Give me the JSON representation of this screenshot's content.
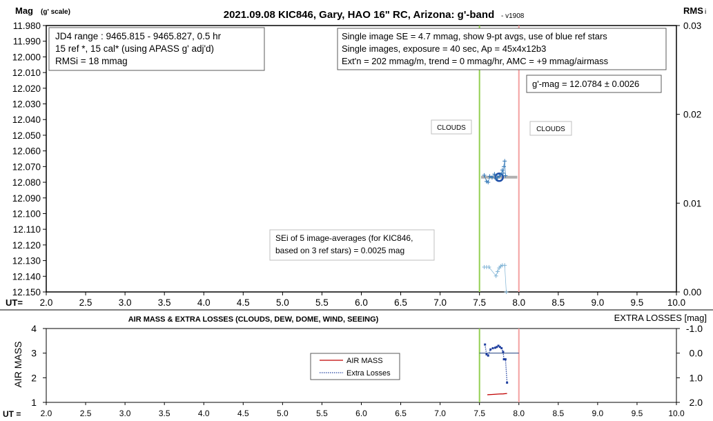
{
  "chart_data": [
    {
      "type": "scatter",
      "title": "2021.09.08 KIC846, Gary, HAO 16\" RC, Arizona: g'-band",
      "version": "- v1908",
      "ylabel": "Mag",
      "ylabel_suffix": "(g' scale)",
      "y2label": "RMS",
      "y2label_suffix": "i",
      "xaxis_prefix": "UT=",
      "xlim": [
        2.0,
        10.0
      ],
      "ylim": [
        11.98,
        12.15
      ],
      "y_inverted": true,
      "y2lim": [
        0.0,
        0.03
      ],
      "x_ticks": [
        "2.0",
        "2.5",
        "3.0",
        "3.5",
        "4.0",
        "4.5",
        "5.0",
        "5.5",
        "6.0",
        "6.5",
        "7.0",
        "7.5",
        "8.0",
        "8.5",
        "9.0",
        "9.5",
        "10.0"
      ],
      "y_ticks": [
        "11.980",
        "11.990",
        "12.000",
        "12.010",
        "12.020",
        "12.030",
        "12.040",
        "12.050",
        "12.060",
        "12.070",
        "12.080",
        "12.090",
        "12.100",
        "12.110",
        "12.120",
        "12.130",
        "12.140",
        "12.150"
      ],
      "y2_ticks": [
        "0.03",
        "0.02",
        "0.01",
        "0.00"
      ],
      "vlines": [
        {
          "x": 7.5,
          "color": "#92d050"
        },
        {
          "x": 8.0,
          "color": "#f4a0a0"
        }
      ],
      "series": [
        {
          "role": "mag",
          "color": "#2e75b6",
          "points": [
            [
              7.56,
              12.0755
            ],
            [
              7.59,
              12.0795
            ],
            [
              7.61,
              12.08
            ],
            [
              7.63,
              12.0762
            ],
            [
              7.66,
              12.077
            ],
            [
              7.69,
              12.0748
            ],
            [
              7.71,
              12.0778
            ],
            [
              7.73,
              12.0768
            ],
            [
              7.75,
              12.0762
            ],
            [
              7.77,
              12.0752
            ],
            [
              7.79,
              12.0722
            ],
            [
              7.8,
              12.0742
            ],
            [
              7.81,
              12.07
            ],
            [
              7.82,
              12.0665
            ],
            [
              7.83,
              12.0758
            ]
          ]
        },
        {
          "role": "rms",
          "color": "#7fb3d5",
          "points": [
            [
              7.56,
              0.0028
            ],
            [
              7.59,
              0.0028
            ],
            [
              7.62,
              0.0028
            ],
            [
              7.71,
              0.0018
            ],
            [
              7.73,
              0.0023
            ],
            [
              7.75,
              0.0027
            ],
            [
              7.77,
              0.0029
            ],
            [
              7.79,
              0.003
            ],
            [
              7.82,
              0.003
            ],
            [
              7.84,
              0.0
            ]
          ]
        }
      ],
      "average": {
        "x": 7.75,
        "y": 12.0768,
        "x_from": 7.52,
        "x_to": 7.98,
        "bar_color": "#b0b0b0",
        "marker_color": "#1f4fa8"
      },
      "annotations": {
        "info_box": [
          "JD4 range : 9465.815 - 9465.827,  0.5  hr",
          "15 ref *, 15 cal* (using APASS g' adj'd)",
          "RMSi = 18 mmag"
        ],
        "settings_box": [
          "Single image SE = 4.7 mmag, show  9-pt avgs, use of blue ref stars",
          "Single images, exposure = 40 sec, Ap = 45x4x12b3",
          "Ext'n = 202 mmag/m, trend = 0 mmag/hr, AMC = +9 mmag/airmass"
        ],
        "result_box": "g'-mag = 12.0784 ± 0.0026",
        "clouds_left": "CLOUDS",
        "clouds_right": "CLOUDS",
        "sei_box": [
          "SEi of 5 image-averages (for KIC846,",
          "based on 3 ref stars) = 0.0025 mag"
        ]
      }
    },
    {
      "type": "line",
      "title": "AIR MASS & EXTRA LOSSES (CLOUDS, DEW, DOME, WIND, SEEING)",
      "ylabel": "AIR MASS",
      "y2label": "EXTRA LOSSES [mag]",
      "xaxis_prefix": "UT =",
      "xlim": [
        2.0,
        10.0
      ],
      "ylim": [
        1,
        4
      ],
      "y2lim": [
        -1.0,
        2.0
      ],
      "y2_inverted": true,
      "x_ticks": [
        "2.0",
        "2.5",
        "3.0",
        "3.5",
        "4.0",
        "4.5",
        "5.0",
        "5.5",
        "6.0",
        "6.5",
        "7.0",
        "7.5",
        "8.0",
        "8.5",
        "9.0",
        "9.5",
        "10.0"
      ],
      "y_ticks": [
        "4",
        "3",
        "2",
        "1"
      ],
      "y2_ticks": [
        "-1.0",
        "0.0",
        "1.0",
        "2.0"
      ],
      "vlines": [
        {
          "x": 7.5,
          "color": "#92d050"
        },
        {
          "x": 8.0,
          "color": "#f4a0a0"
        }
      ],
      "zero_line": {
        "y2": 0.0,
        "x_from": 7.5,
        "x_to": 8.0,
        "color": "#1f3f7f"
      },
      "legend": {
        "placement": "center-right",
        "entries": [
          "AIR MASS",
          "Extra Losses"
        ]
      },
      "series": [
        {
          "name": "AIR MASS",
          "axis": "left",
          "color": "#c00000",
          "dash": "solid",
          "x": [
            7.6,
            7.65,
            7.7,
            7.75,
            7.8,
            7.85
          ],
          "y": [
            1.31,
            1.32,
            1.33,
            1.34,
            1.345,
            1.36
          ]
        },
        {
          "name": "Extra Losses",
          "axis": "right",
          "color": "#1f3f9f",
          "dash": "dotted",
          "x": [
            7.57,
            7.59,
            7.61,
            7.64,
            7.67,
            7.7,
            7.72,
            7.74,
            7.76,
            7.78,
            7.8,
            7.81,
            7.83,
            7.85
          ],
          "y": [
            -0.35,
            0.05,
            0.1,
            -0.15,
            -0.2,
            -0.22,
            -0.25,
            -0.3,
            -0.25,
            -0.2,
            -0.05,
            0.25,
            0.25,
            1.2
          ]
        }
      ]
    }
  ]
}
